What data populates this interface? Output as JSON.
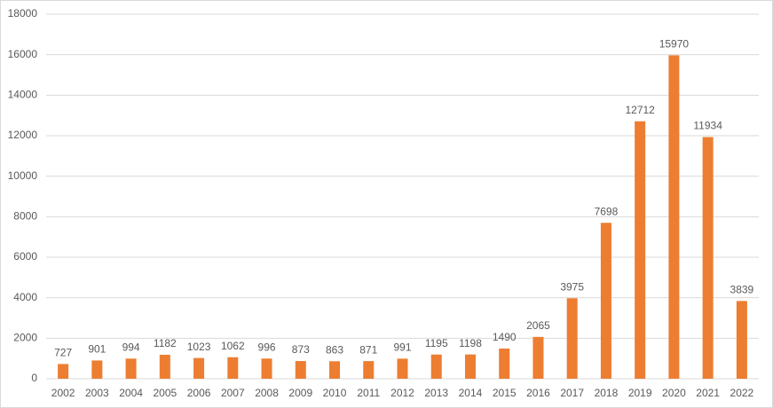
{
  "chart_data": {
    "type": "bar",
    "categories": [
      "2002",
      "2003",
      "2004",
      "2005",
      "2006",
      "2007",
      "2008",
      "2009",
      "2010",
      "2011",
      "2012",
      "2013",
      "2014",
      "2015",
      "2016",
      "2017",
      "2018",
      "2019",
      "2020",
      "2021",
      "2022"
    ],
    "values": [
      727,
      901,
      994,
      1182,
      1023,
      1062,
      996,
      873,
      863,
      871,
      991,
      1195,
      1198,
      1490,
      2065,
      3975,
      7698,
      12712,
      15970,
      11934,
      3839
    ],
    "color": "#ed7d31",
    "ylim": [
      0,
      18000
    ],
    "yticks": [
      0,
      2000,
      4000,
      6000,
      8000,
      10000,
      12000,
      14000,
      16000,
      18000
    ],
    "grid": true
  }
}
